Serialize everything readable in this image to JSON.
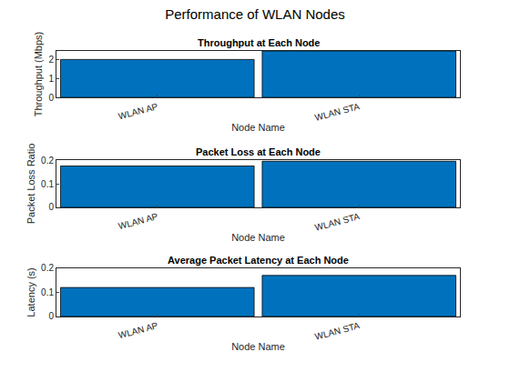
{
  "title": "Performance of WLAN Nodes",
  "chart_data": [
    {
      "type": "bar",
      "title": "Throughput at Each Node",
      "x_label": "Node Name",
      "y_label": "Throughput (Mbps)",
      "categories": [
        "WLAN AP",
        "WLAN STA"
      ],
      "values": [
        2.0,
        2.45
      ],
      "color": "#0072bd",
      "ylim": [
        0,
        2.45
      ],
      "yticks": [
        0,
        1,
        2
      ],
      "grid": false
    },
    {
      "type": "bar",
      "title": "Packet Loss at Each Node",
      "x_label": "Node Name",
      "y_label": "Packet Loss Ratio",
      "categories": [
        "WLAN AP",
        "WLAN STA"
      ],
      "values": [
        0.175,
        0.195
      ],
      "color": "#0072bd",
      "ylim": [
        0,
        0.2
      ],
      "yticks": [
        0,
        0.1,
        0.2
      ],
      "grid": false
    },
    {
      "type": "bar",
      "title": "Average Packet Latency at Each Node",
      "x_label": "Node Name",
      "y_label": "Latency (s)",
      "categories": [
        "WLAN AP",
        "WLAN STA"
      ],
      "values": [
        0.12,
        0.17
      ],
      "color": "#0072bd",
      "ylim": [
        0,
        0.2
      ],
      "yticks": [
        0,
        0.1,
        0.2
      ],
      "grid": false
    }
  ]
}
